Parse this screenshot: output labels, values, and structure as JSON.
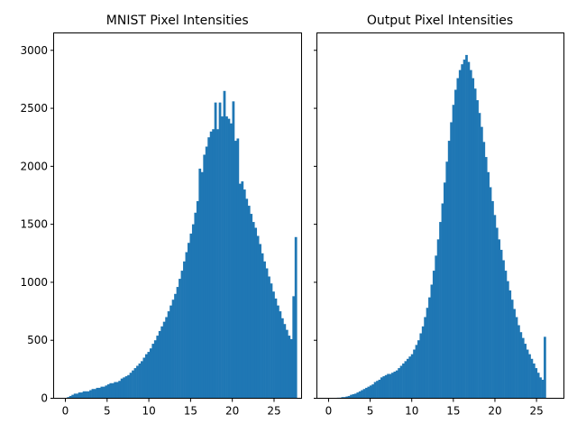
{
  "chart_data": [
    {
      "type": "bar",
      "title": "MNIST Pixel Intensities",
      "xlabel": "",
      "ylabel": "",
      "xlim": [
        -1.35,
        28.35
      ],
      "ylim": [
        0,
        3150
      ],
      "x_ticks": [
        0,
        5,
        10,
        15,
        20,
        25
      ],
      "y_ticks": [
        0,
        500,
        1000,
        1500,
        2000,
        2500,
        3000
      ],
      "bin_start": 0.2,
      "bin_width": 0.2673,
      "color": "#1f77b4",
      "values": [
        10,
        20,
        30,
        40,
        40,
        50,
        50,
        60,
        60,
        60,
        70,
        80,
        80,
        90,
        90,
        100,
        100,
        110,
        120,
        130,
        130,
        140,
        140,
        150,
        170,
        180,
        190,
        200,
        220,
        240,
        260,
        280,
        300,
        320,
        350,
        380,
        400,
        430,
        470,
        500,
        540,
        580,
        620,
        660,
        700,
        750,
        800,
        850,
        900,
        960,
        1030,
        1100,
        1180,
        1260,
        1340,
        1420,
        1500,
        1600,
        1700,
        1980,
        1950,
        2100,
        2170,
        2250,
        2300,
        2320,
        2550,
        2320,
        2550,
        2430,
        2650,
        2430,
        2410,
        2370,
        2560,
        2220,
        2240,
        1850,
        1870,
        1800,
        1720,
        1660,
        1590,
        1520,
        1470,
        1400,
        1330,
        1250,
        1180,
        1120,
        1050,
        990,
        920,
        860,
        800,
        750,
        690,
        640,
        590,
        540,
        510,
        880,
        1390
      ]
    },
    {
      "type": "bar",
      "title": "Output Pixel Intensities",
      "xlabel": "",
      "ylabel": "",
      "xlim": [
        -1.35,
        28.35
      ],
      "ylim": [
        0,
        3150
      ],
      "x_ticks": [
        0,
        5,
        10,
        15,
        20,
        25
      ],
      "y_ticks": [
        0,
        500,
        1000,
        1500,
        2000,
        2500,
        3000
      ],
      "bin_start": 1.0,
      "bin_width": 0.2617,
      "color": "#1f77b4",
      "values": [
        5,
        5,
        10,
        10,
        15,
        20,
        30,
        35,
        40,
        50,
        60,
        70,
        80,
        90,
        100,
        110,
        120,
        140,
        150,
        160,
        180,
        190,
        200,
        210,
        210,
        220,
        230,
        240,
        260,
        280,
        300,
        320,
        340,
        360,
        380,
        420,
        460,
        500,
        560,
        620,
        700,
        780,
        870,
        980,
        1100,
        1230,
        1370,
        1520,
        1680,
        1860,
        2040,
        2220,
        2380,
        2530,
        2660,
        2760,
        2830,
        2880,
        2920,
        2960,
        2900,
        2830,
        2760,
        2670,
        2570,
        2460,
        2340,
        2210,
        2080,
        1950,
        1820,
        1700,
        1580,
        1470,
        1370,
        1280,
        1190,
        1100,
        1010,
        930,
        850,
        770,
        700,
        630,
        570,
        520,
        470,
        420,
        380,
        340,
        300,
        260,
        220,
        180,
        160,
        530
      ]
    }
  ]
}
